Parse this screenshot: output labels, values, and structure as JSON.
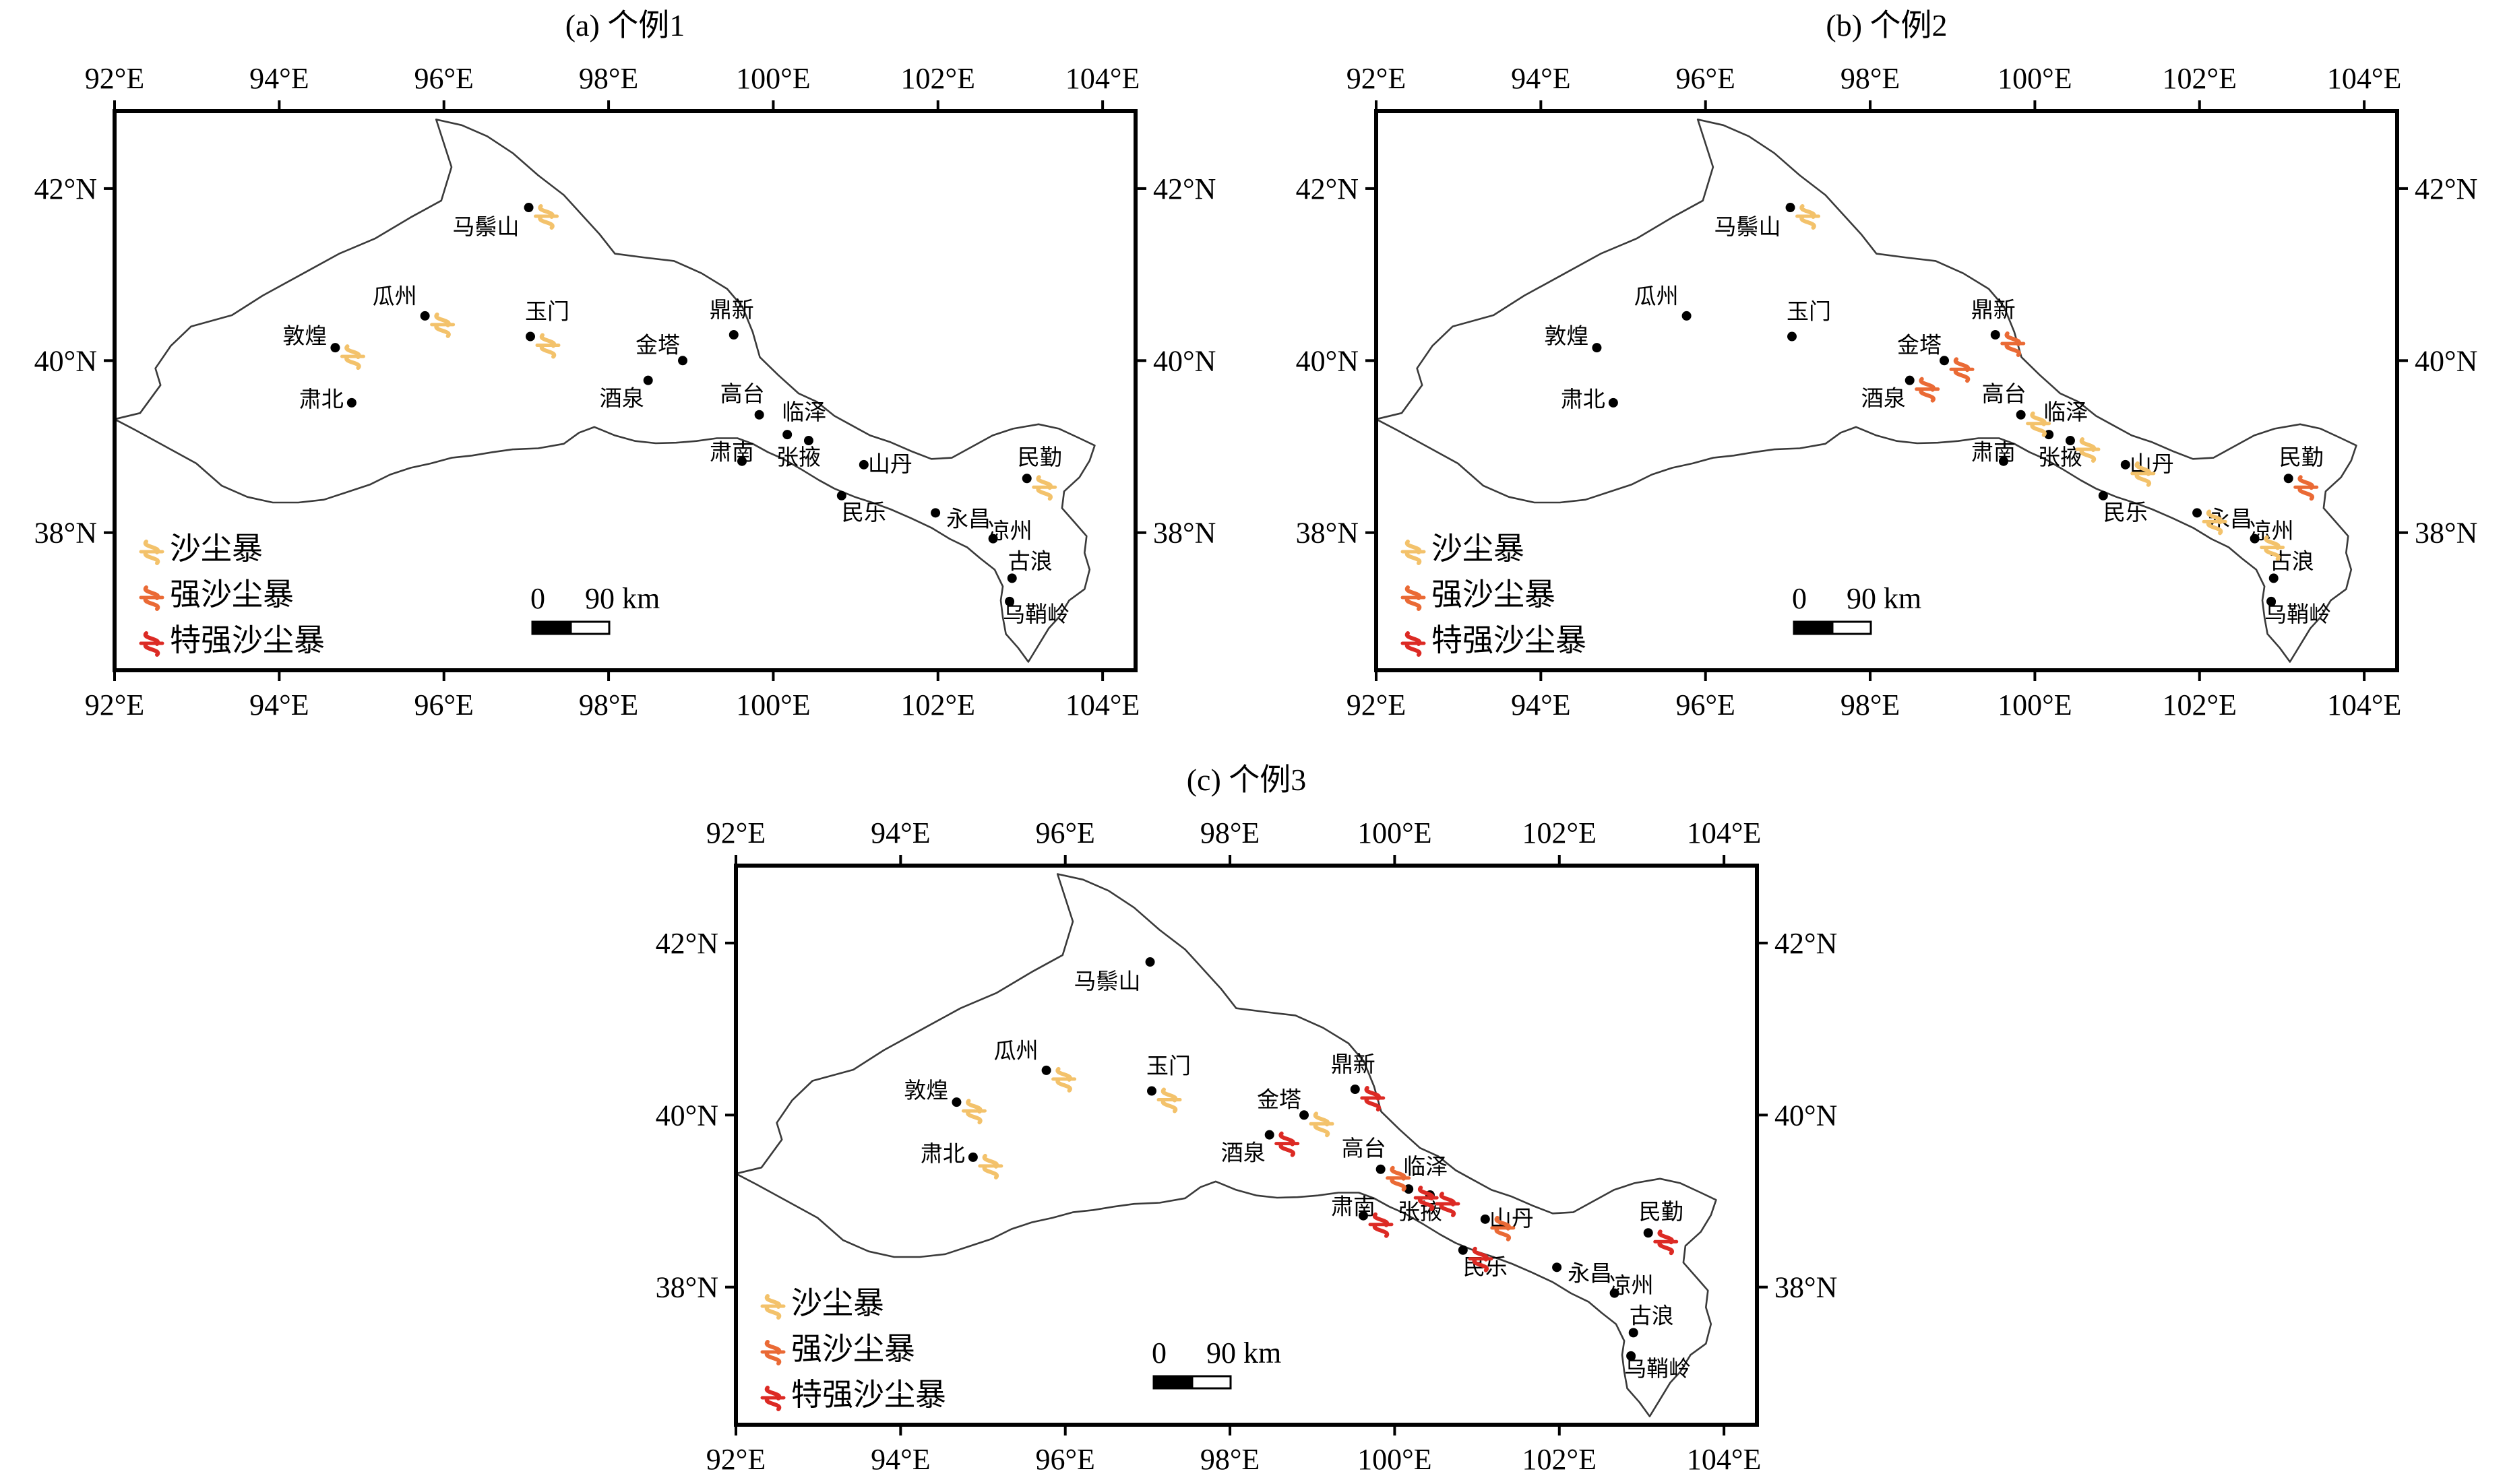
{
  "axes": {
    "lon_ticks": [
      "92°E",
      "94°E",
      "96°E",
      "98°E",
      "100°E",
      "102°E",
      "104°E"
    ],
    "lat_ticks": [
      "42°N",
      "40°N",
      "38°N"
    ],
    "lon_range": [
      92,
      104.4
    ],
    "lat_range": [
      36.4,
      42.9
    ]
  },
  "legend": {
    "items": [
      {
        "key": "dust",
        "label": "沙尘暴",
        "color": "#f3c26b"
      },
      {
        "key": "strong",
        "label": "强沙尘暴",
        "color": "#ea6a35"
      },
      {
        "key": "severe",
        "label": "特强沙尘暴",
        "color": "#dc2a24"
      }
    ]
  },
  "scalebar": {
    "zero": "0",
    "label": "90 km"
  },
  "colors": {
    "dust": "#f3c26b",
    "strong": "#ea6a35",
    "severe": "#dc2a24"
  },
  "symbol_icon": "dust-storm-symbol-icon",
  "stations": [
    {
      "name": "马鬃山",
      "lon": 97.03,
      "lat": 41.78
    },
    {
      "name": "敦煌",
      "lon": 94.68,
      "lat": 40.15
    },
    {
      "name": "瓜州",
      "lon": 95.77,
      "lat": 40.52
    },
    {
      "name": "玉门",
      "lon": 97.05,
      "lat": 40.28
    },
    {
      "name": "肃北",
      "lon": 94.88,
      "lat": 39.51
    },
    {
      "name": "鼎新",
      "lon": 99.52,
      "lat": 40.3
    },
    {
      "name": "金塔",
      "lon": 98.9,
      "lat": 40.0
    },
    {
      "name": "酒泉",
      "lon": 98.48,
      "lat": 39.77
    },
    {
      "name": "高台",
      "lon": 99.83,
      "lat": 39.37
    },
    {
      "name": "临泽",
      "lon": 100.17,
      "lat": 39.14
    },
    {
      "name": "张掖",
      "lon": 100.43,
      "lat": 39.07
    },
    {
      "name": "肃南",
      "lon": 99.62,
      "lat": 38.83
    },
    {
      "name": "山丹",
      "lon": 101.1,
      "lat": 38.79
    },
    {
      "name": "民乐",
      "lon": 100.83,
      "lat": 38.43
    },
    {
      "name": "永昌",
      "lon": 101.97,
      "lat": 38.23
    },
    {
      "name": "凉州",
      "lon": 102.67,
      "lat": 37.93
    },
    {
      "name": "古浪",
      "lon": 102.9,
      "lat": 37.47
    },
    {
      "name": "民勤",
      "lon": 103.08,
      "lat": 38.63
    },
    {
      "name": "乌鞘岭",
      "lon": 102.87,
      "lat": 37.2
    }
  ],
  "panels": [
    {
      "title": "(a) 个例1",
      "events": [
        {
          "station": "马鬃山",
          "level": "dust"
        },
        {
          "station": "敦煌",
          "level": "dust"
        },
        {
          "station": "瓜州",
          "level": "dust"
        },
        {
          "station": "玉门",
          "level": "dust"
        },
        {
          "station": "民勤",
          "level": "dust"
        }
      ]
    },
    {
      "title": "(b) 个例2",
      "events": [
        {
          "station": "马鬃山",
          "level": "dust"
        },
        {
          "station": "鼎新",
          "level": "strong"
        },
        {
          "station": "金塔",
          "level": "strong"
        },
        {
          "station": "酒泉",
          "level": "strong"
        },
        {
          "station": "高台",
          "level": "dust"
        },
        {
          "station": "张掖",
          "level": "dust"
        },
        {
          "station": "山丹",
          "level": "dust"
        },
        {
          "station": "永昌",
          "level": "dust"
        },
        {
          "station": "凉州",
          "level": "dust"
        },
        {
          "station": "民勤",
          "level": "strong"
        }
      ]
    },
    {
      "title": "(c) 个例3",
      "events": [
        {
          "station": "敦煌",
          "level": "dust"
        },
        {
          "station": "瓜州",
          "level": "dust"
        },
        {
          "station": "玉门",
          "level": "dust"
        },
        {
          "station": "肃北",
          "level": "dust"
        },
        {
          "station": "金塔",
          "level": "dust"
        },
        {
          "station": "鼎新",
          "level": "severe"
        },
        {
          "station": "酒泉",
          "level": "severe"
        },
        {
          "station": "高台",
          "level": "strong"
        },
        {
          "station": "肃南",
          "level": "severe"
        },
        {
          "station": "临泽",
          "level": "severe"
        },
        {
          "station": "张掖",
          "level": "severe"
        },
        {
          "station": "山丹",
          "level": "strong"
        },
        {
          "station": "民乐",
          "level": "severe"
        },
        {
          "station": "民勤",
          "level": "severe"
        }
      ]
    }
  ]
}
